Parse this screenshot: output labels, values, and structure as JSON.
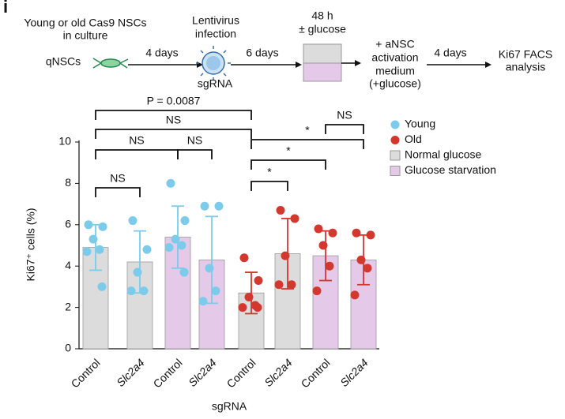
{
  "panel_label": "i",
  "workflow": {
    "source": [
      "Young or old Cas9 NSCs",
      "in culture"
    ],
    "start": "qNSCs",
    "step1": "4 days",
    "virus": [
      "Lentivirus",
      "infection"
    ],
    "virus_label": "sgRNA",
    "step2": "6 days",
    "treatment": [
      "48 h",
      "± glucose"
    ],
    "activation": [
      "+ aNSC",
      "activation",
      "medium",
      "(+glucose)"
    ],
    "step3": "4 days",
    "readout": [
      "Ki67 FACS",
      "analysis"
    ]
  },
  "chart_data": {
    "type": "bar",
    "y_label": "Ki67⁺ cells (%)",
    "x_label": "sgRNA",
    "categories": [
      "Control",
      "Slc2a4",
      "Control",
      "Slc2a4",
      "Control",
      "Slc2a4",
      "Control",
      "Slc2a4"
    ],
    "values": [
      4.9,
      4.2,
      5.4,
      4.3,
      2.7,
      4.6,
      4.5,
      4.3
    ],
    "errors": [
      1.1,
      1.5,
      1.5,
      2.1,
      1.0,
      1.7,
      1.2,
      1.2
    ],
    "bar_colors": [
      "#dcdcdc",
      "#dcdcdc",
      "#e5c9e8",
      "#e5c9e8",
      "#dcdcdc",
      "#dcdcdc",
      "#e5c9e8",
      "#e5c9e8"
    ],
    "point_colors": [
      "#7ccbea",
      "#7ccbea",
      "#7ccbea",
      "#7ccbea",
      "#d3382f",
      "#d3382f",
      "#d3382f",
      "#d3382f"
    ],
    "points": [
      [
        6.0,
        5.9,
        5.3,
        4.8,
        4.7,
        3.0
      ],
      [
        6.2,
        4.8,
        3.7,
        2.8,
        2.8
      ],
      [
        8.0,
        6.2,
        5.3,
        5.0,
        4.9,
        3.7
      ],
      [
        6.9,
        6.9,
        3.9,
        2.8,
        2.3
      ],
      [
        4.4,
        3.3,
        2.5,
        2.1,
        2.0,
        2.0
      ],
      [
        6.7,
        6.3,
        4.5,
        3.1,
        3.1
      ],
      [
        5.8,
        5.6,
        5.0,
        4.0,
        2.8
      ],
      [
        5.6,
        5.5,
        4.3,
        3.9,
        2.6
      ]
    ],
    "ylim": [
      0,
      10
    ],
    "yticks": [
      0,
      2,
      4,
      6,
      8,
      10
    ],
    "legend": [
      {
        "name": "Young",
        "color": "#7ccbea",
        "shape": "circle"
      },
      {
        "name": "Old",
        "color": "#d3382f",
        "shape": "circle"
      },
      {
        "name": "Normal glucose",
        "color": "#dcdcdc",
        "shape": "square"
      },
      {
        "name": "Glucose starvation",
        "color": "#e5c9e8",
        "shape": "square"
      }
    ],
    "annotations": [
      "P = 0.0087",
      "NS",
      "NS",
      "NS",
      "NS",
      "*",
      "*",
      "*",
      "NS"
    ]
  }
}
